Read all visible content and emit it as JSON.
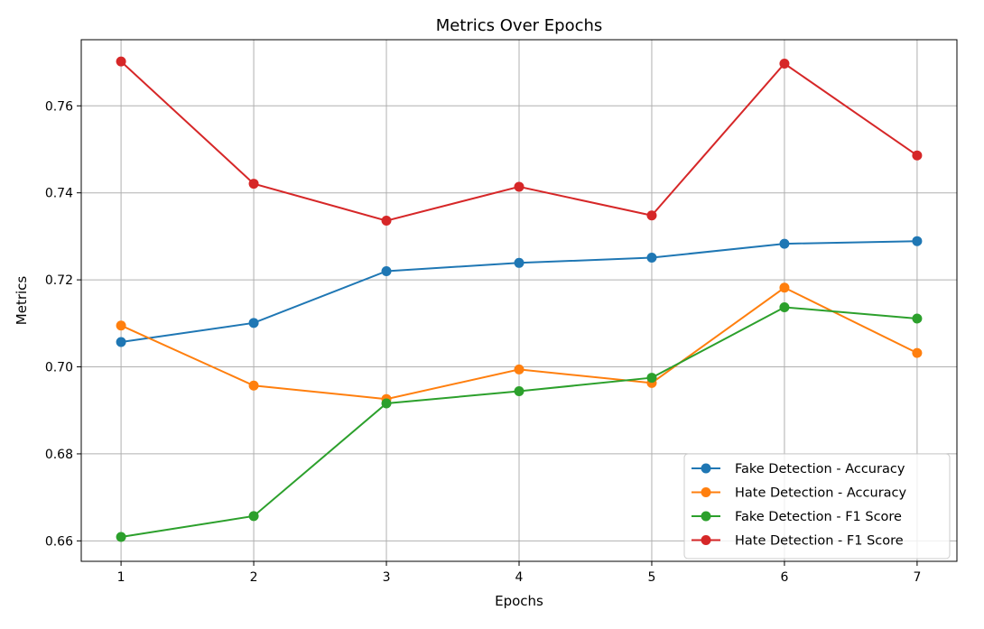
{
  "chart_data": {
    "type": "line",
    "title": "Metrics Over Epochs",
    "xlabel": "Epochs",
    "ylabel": "Metrics",
    "x": [
      1,
      2,
      3,
      4,
      5,
      6,
      7
    ],
    "xlim": [
      0.7,
      7.3
    ],
    "ylim": [
      0.6553,
      0.7752
    ],
    "xticks": [
      1,
      2,
      3,
      4,
      5,
      6,
      7
    ],
    "yticks": [
      0.66,
      0.68,
      0.7,
      0.72,
      0.74,
      0.76
    ],
    "ytick_labels": [
      "0.66",
      "0.68",
      "0.70",
      "0.72",
      "0.74",
      "0.76"
    ],
    "grid": true,
    "legend_position": "lower right",
    "series": [
      {
        "name": "Fake Detection - Accuracy",
        "color": "#1f77b4",
        "marker": "circle",
        "values": [
          0.7057,
          0.7101,
          0.722,
          0.7239,
          0.7251,
          0.7283,
          0.7289
        ]
      },
      {
        "name": "Hate Detection - Accuracy",
        "color": "#ff7f0e",
        "marker": "circle",
        "values": [
          0.7095,
          0.6957,
          0.6926,
          0.6994,
          0.6963,
          0.7182,
          0.7032
        ]
      },
      {
        "name": "Fake Detection - F1 Score",
        "color": "#2ca02c",
        "marker": "circle",
        "values": [
          0.6609,
          0.6657,
          0.6916,
          0.6944,
          0.6975,
          0.7137,
          0.7111
        ]
      },
      {
        "name": "Hate Detection - F1 Score",
        "color": "#d62728",
        "marker": "circle",
        "values": [
          0.7702,
          0.7421,
          0.7336,
          0.7414,
          0.7348,
          0.7697,
          0.7486
        ]
      }
    ]
  }
}
